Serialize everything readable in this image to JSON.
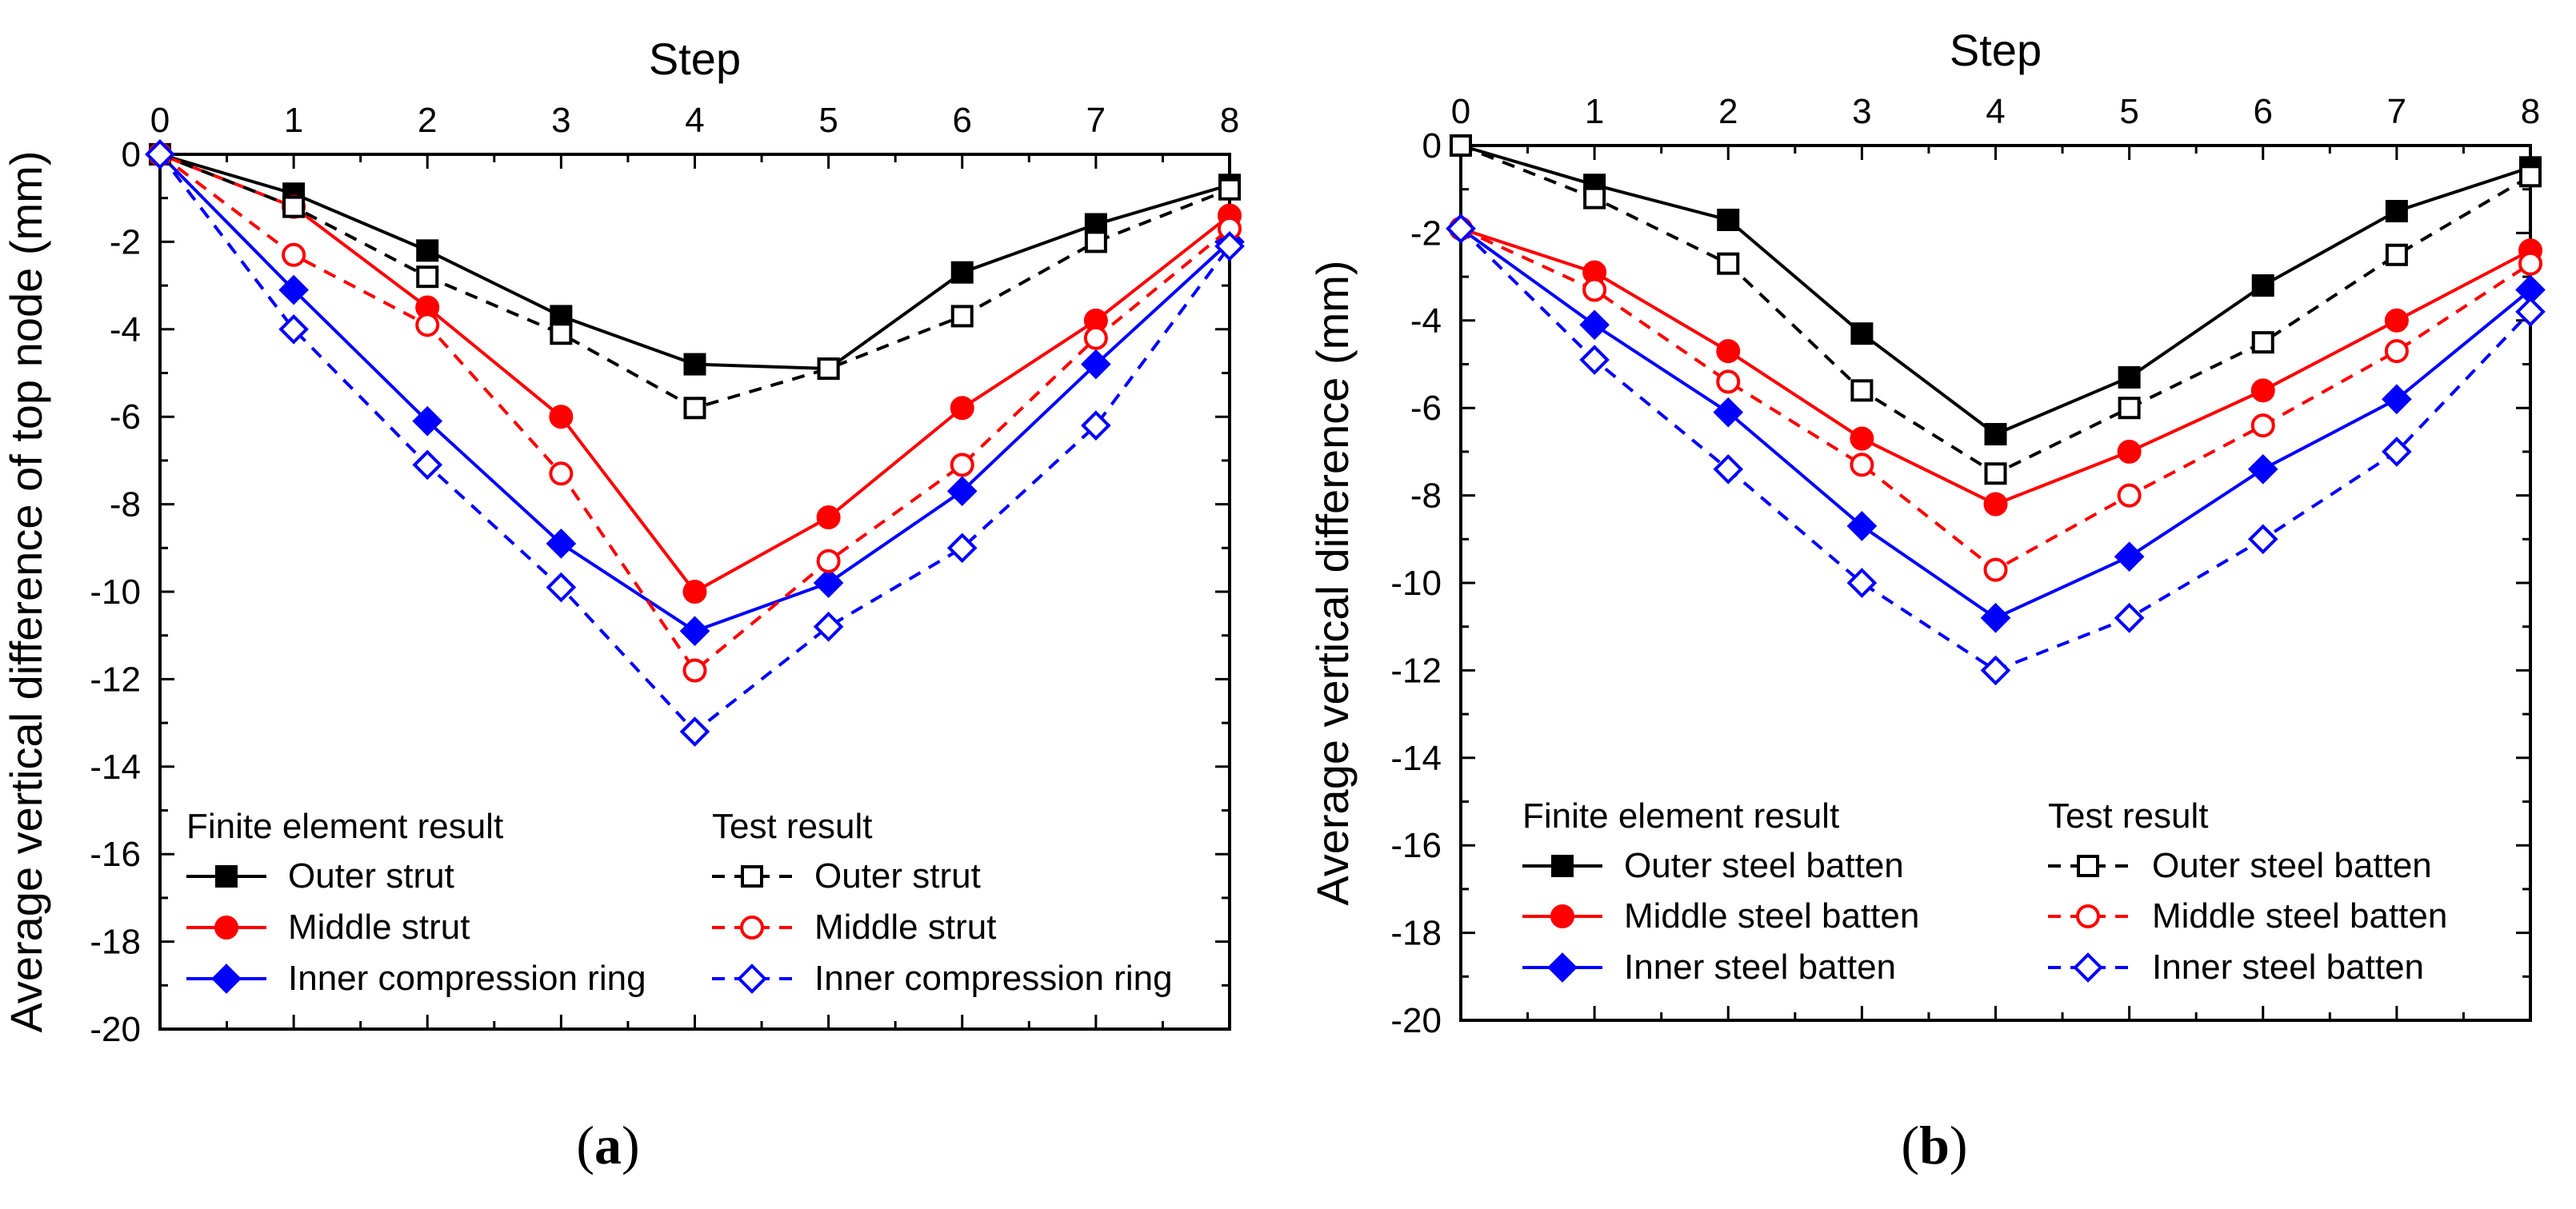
{
  "colors": {
    "black": "#000000",
    "red": "#ff0000",
    "blue": "#0000ff"
  },
  "chart_data": [
    {
      "type": "line",
      "panel_label": "a",
      "title": "",
      "xlabel": "Step",
      "ylabel": "Average vertical difference of top node (mm)",
      "x": [
        0,
        1,
        2,
        3,
        4,
        5,
        6,
        7,
        8
      ],
      "xlim": [
        0,
        8
      ],
      "ylim": [
        -20,
        0
      ],
      "xticks": [
        "0",
        "1",
        "2",
        "3",
        "4",
        "5",
        "6",
        "7",
        "8"
      ],
      "yticks": [
        "0",
        "-2",
        "-4",
        "-6",
        "-8",
        "-10",
        "-12",
        "-14",
        "-16",
        "-18",
        "-20"
      ],
      "legend_headers": [
        "Finite element result",
        "Test result"
      ],
      "series": [
        {
          "name": "Outer strut",
          "group": "fe",
          "color": "#000000",
          "marker": "square",
          "filled": true,
          "dashed": false,
          "values": [
            0,
            -0.9,
            -2.2,
            -3.7,
            -4.8,
            -4.9,
            -2.7,
            -1.6,
            -0.7
          ]
        },
        {
          "name": "Middle strut",
          "group": "fe",
          "color": "#ff0000",
          "marker": "circle",
          "filled": true,
          "dashed": false,
          "values": [
            0,
            -1.2,
            -3.5,
            -6.0,
            -10.0,
            -8.3,
            -5.8,
            -3.8,
            -1.4
          ]
        },
        {
          "name": "Inner compression ring",
          "group": "fe",
          "color": "#0000ff",
          "marker": "diamond",
          "filled": true,
          "dashed": false,
          "values": [
            0,
            -3.1,
            -6.1,
            -8.9,
            -10.9,
            -9.8,
            -7.7,
            -4.8,
            -2.0
          ]
        },
        {
          "name": "Outer strut",
          "group": "test",
          "color": "#000000",
          "marker": "square",
          "filled": false,
          "dashed": true,
          "values": [
            0,
            -1.2,
            -2.8,
            -4.1,
            -5.8,
            -4.9,
            -3.7,
            -2.0,
            -0.8
          ]
        },
        {
          "name": "Middle strut",
          "group": "test",
          "color": "#ff0000",
          "marker": "circle",
          "filled": false,
          "dashed": true,
          "values": [
            0,
            -2.3,
            -3.9,
            -7.3,
            -11.8,
            -9.3,
            -7.1,
            -4.2,
            -1.7
          ]
        },
        {
          "name": "Inner compression ring",
          "group": "test",
          "color": "#0000ff",
          "marker": "diamond",
          "filled": false,
          "dashed": true,
          "values": [
            0,
            -4.0,
            -7.1,
            -9.9,
            -13.2,
            -10.8,
            -9.0,
            -6.2,
            -2.1
          ]
        }
      ]
    },
    {
      "type": "line",
      "panel_label": "b",
      "title": "",
      "xlabel": "Step",
      "ylabel": "Average vertical difference (mm)",
      "x": [
        0,
        1,
        2,
        3,
        4,
        5,
        6,
        7,
        8
      ],
      "xlim": [
        0,
        8
      ],
      "ylim": [
        -20,
        0
      ],
      "xticks": [
        "0",
        "1",
        "2",
        "3",
        "4",
        "5",
        "6",
        "7",
        "8"
      ],
      "yticks": [
        "0",
        "-2",
        "-4",
        "-6",
        "-8",
        "-10",
        "-12",
        "-14",
        "-16",
        "-18",
        "-20"
      ],
      "legend_headers": [
        "Finite element result",
        "Test result"
      ],
      "series": [
        {
          "name": "Outer steel batten",
          "group": "fe",
          "color": "#000000",
          "marker": "square",
          "filled": true,
          "dashed": false,
          "values": [
            0,
            -0.9,
            -1.7,
            -4.3,
            -6.6,
            -5.3,
            -3.2,
            -1.5,
            -0.5
          ]
        },
        {
          "name": "Middle steel batten",
          "group": "fe",
          "color": "#ff0000",
          "marker": "circle",
          "filled": true,
          "dashed": false,
          "values": [
            -1.9,
            -2.9,
            -4.7,
            -6.7,
            -8.2,
            -7.0,
            -5.6,
            -4.0,
            -2.4
          ]
        },
        {
          "name": "Inner steel batten",
          "group": "fe",
          "color": "#0000ff",
          "marker": "diamond",
          "filled": true,
          "dashed": false,
          "values": [
            -1.9,
            -4.1,
            -6.1,
            -8.7,
            -10.8,
            -9.4,
            -7.4,
            -5.8,
            -3.3
          ]
        },
        {
          "name": "Outer steel batten",
          "group": "test",
          "color": "#000000",
          "marker": "square",
          "filled": false,
          "dashed": true,
          "values": [
            0,
            -1.2,
            -2.7,
            -5.6,
            -7.5,
            -6.0,
            -4.5,
            -2.5,
            -0.7
          ]
        },
        {
          "name": "Middle steel batten",
          "group": "test",
          "color": "#ff0000",
          "marker": "circle",
          "filled": false,
          "dashed": true,
          "values": [
            -1.9,
            -3.3,
            -5.4,
            -7.3,
            -9.7,
            -8.0,
            -6.4,
            -4.7,
            -2.7
          ]
        },
        {
          "name": "Inner steel batten",
          "group": "test",
          "color": "#0000ff",
          "marker": "diamond",
          "filled": false,
          "dashed": true,
          "values": [
            -1.9,
            -4.9,
            -7.4,
            -10.0,
            -12.0,
            -10.8,
            -9.0,
            -7.0,
            -3.8
          ]
        }
      ]
    }
  ]
}
